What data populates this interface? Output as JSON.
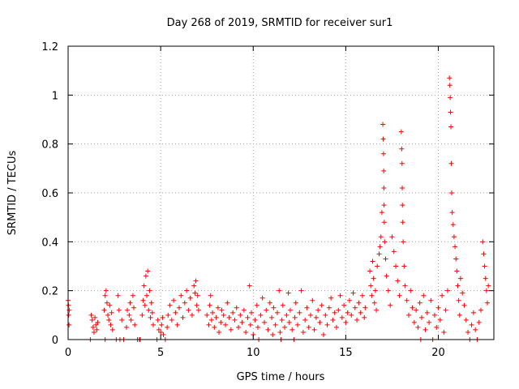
{
  "chart_data": {
    "type": "scatter",
    "title": "Day 268 of 2019, SRMTID for receiver sur1",
    "xlabel": "GPS time / hours",
    "ylabel": "SRMTID / TECUs",
    "xlim": [
      0,
      23
    ],
    "ylim": [
      0,
      1.2
    ],
    "xticks": [
      0,
      5,
      10,
      15,
      20
    ],
    "yticks": [
      0,
      0.2,
      0.4,
      0.6,
      0.8,
      1,
      1.2
    ],
    "xtick_labels": [
      "0",
      "5",
      "10",
      "15",
      "20"
    ],
    "ytick_labels": [
      "0",
      "0.2",
      "0.4",
      "0.6",
      "0.8",
      "1",
      "1.2"
    ],
    "grid": true,
    "marker": "+",
    "color": "#ff0000",
    "series": [
      {
        "name": "SRMTID",
        "points": [
          [
            0.0,
            0.16
          ],
          [
            0.02,
            0.14
          ],
          [
            0.03,
            0.1
          ],
          [
            0.05,
            0.06
          ],
          [
            0.06,
            0.12
          ],
          [
            1.2,
            0.0
          ],
          [
            1.25,
            0.1
          ],
          [
            1.3,
            0.08
          ],
          [
            1.35,
            0.05
          ],
          [
            1.4,
            0.03
          ],
          [
            1.45,
            0.09
          ],
          [
            1.5,
            0.06
          ],
          [
            1.55,
            0.04
          ],
          [
            1.6,
            0.07
          ],
          [
            1.95,
            0.12
          ],
          [
            2.0,
            0.18
          ],
          [
            2.05,
            0.2
          ],
          [
            2.1,
            0.15
          ],
          [
            2.15,
            0.1
          ],
          [
            2.2,
            0.08
          ],
          [
            2.25,
            0.14
          ],
          [
            2.3,
            0.06
          ],
          [
            2.35,
            0.11
          ],
          [
            2.4,
            0.04
          ],
          [
            2.0,
            0.0
          ],
          [
            2.6,
            0.0
          ],
          [
            2.7,
            0.18
          ],
          [
            2.75,
            0.12
          ],
          [
            2.8,
            0.0
          ],
          [
            2.9,
            0.08
          ],
          [
            3.0,
            0.0
          ],
          [
            3.15,
            0.05
          ],
          [
            3.2,
            0.12
          ],
          [
            3.3,
            0.1
          ],
          [
            3.35,
            0.15
          ],
          [
            3.4,
            0.08
          ],
          [
            3.5,
            0.18
          ],
          [
            3.55,
            0.13
          ],
          [
            3.6,
            0.06
          ],
          [
            3.75,
            0.0
          ],
          [
            3.85,
            0.0
          ],
          [
            3.9,
            0.0
          ],
          [
            4.0,
            0.1
          ],
          [
            4.05,
            0.16
          ],
          [
            4.1,
            0.22
          ],
          [
            4.15,
            0.14
          ],
          [
            4.2,
            0.26
          ],
          [
            4.25,
            0.18
          ],
          [
            4.3,
            0.28
          ],
          [
            4.35,
            0.12
          ],
          [
            4.4,
            0.2
          ],
          [
            4.45,
            0.09
          ],
          [
            4.5,
            0.15
          ],
          [
            4.55,
            0.11
          ],
          [
            4.6,
            0.06
          ],
          [
            4.8,
            0.0
          ],
          [
            4.85,
            0.08
          ],
          [
            4.9,
            0.04
          ],
          [
            5.0,
            0.03
          ],
          [
            5.05,
            0.06
          ],
          [
            5.1,
            0.09
          ],
          [
            5.15,
            0.02
          ],
          [
            5.25,
            0.0
          ],
          [
            5.35,
            0.05
          ],
          [
            5.4,
            0.1
          ],
          [
            5.5,
            0.14
          ],
          [
            5.6,
            0.08
          ],
          [
            5.7,
            0.16
          ],
          [
            5.8,
            0.11
          ],
          [
            5.9,
            0.06
          ],
          [
            6.0,
            0.13
          ],
          [
            6.1,
            0.18
          ],
          [
            6.2,
            0.09
          ],
          [
            6.3,
            0.15
          ],
          [
            6.4,
            0.2
          ],
          [
            6.5,
            0.12
          ],
          [
            6.6,
            0.17
          ],
          [
            6.7,
            0.1
          ],
          [
            6.8,
            0.22
          ],
          [
            6.85,
            0.19
          ],
          [
            6.9,
            0.24
          ],
          [
            6.95,
            0.14
          ],
          [
            7.0,
            0.18
          ],
          [
            7.05,
            0.12
          ],
          [
            7.5,
            0.1
          ],
          [
            7.6,
            0.06
          ],
          [
            7.65,
            0.14
          ],
          [
            7.7,
            0.18
          ],
          [
            7.75,
            0.08
          ],
          [
            7.8,
            0.11
          ],
          [
            7.9,
            0.05
          ],
          [
            8.0,
            0.09
          ],
          [
            8.1,
            0.13
          ],
          [
            8.15,
            0.03
          ],
          [
            8.25,
            0.07
          ],
          [
            8.3,
            0.12
          ],
          [
            8.4,
            0.1
          ],
          [
            8.5,
            0.06
          ],
          [
            8.6,
            0.15
          ],
          [
            8.7,
            0.09
          ],
          [
            8.8,
            0.04
          ],
          [
            8.9,
            0.11
          ],
          [
            9.0,
            0.08
          ],
          [
            9.1,
            0.13
          ],
          [
            9.2,
            0.05
          ],
          [
            9.3,
            0.1
          ],
          [
            9.4,
            0.07
          ],
          [
            9.5,
            0.12
          ],
          [
            9.6,
            0.03
          ],
          [
            9.7,
            0.09
          ],
          [
            9.8,
            0.22
          ],
          [
            9.85,
            0.06
          ],
          [
            9.9,
            0.11
          ],
          [
            10.0,
            0.02
          ],
          [
            10.1,
            0.08
          ],
          [
            10.2,
            0.14
          ],
          [
            10.25,
            0.05
          ],
          [
            10.3,
            0.0
          ],
          [
            10.4,
            0.1
          ],
          [
            10.5,
            0.17
          ],
          [
            10.6,
            0.07
          ],
          [
            10.7,
            0.12
          ],
          [
            10.8,
            0.04
          ],
          [
            10.9,
            0.15
          ],
          [
            11.0,
            0.09
          ],
          [
            11.05,
            0.02
          ],
          [
            11.1,
            0.13
          ],
          [
            11.2,
            0.06
          ],
          [
            11.3,
            0.11
          ],
          [
            11.4,
            0.2
          ],
          [
            11.45,
            0.03
          ],
          [
            11.5,
            0.0
          ],
          [
            11.55,
            0.08
          ],
          [
            11.6,
            0.14
          ],
          [
            11.7,
            0.05
          ],
          [
            11.8,
            0.1
          ],
          [
            11.9,
            0.19
          ],
          [
            11.95,
            0.07
          ],
          [
            12.0,
            0.12
          ],
          [
            12.1,
            0.04
          ],
          [
            12.2,
            0.0
          ],
          [
            12.25,
            0.09
          ],
          [
            12.3,
            0.15
          ],
          [
            12.4,
            0.06
          ],
          [
            12.5,
            0.11
          ],
          [
            12.6,
            0.2
          ],
          [
            12.7,
            0.03
          ],
          [
            12.8,
            0.08
          ],
          [
            12.9,
            0.13
          ],
          [
            13.0,
            0.05
          ],
          [
            13.1,
            0.1
          ],
          [
            13.2,
            0.16
          ],
          [
            13.3,
            0.04
          ],
          [
            13.4,
            0.09
          ],
          [
            13.5,
            0.12
          ],
          [
            13.6,
            0.07
          ],
          [
            13.7,
            0.14
          ],
          [
            13.8,
            0.02
          ],
          [
            13.9,
            0.1
          ],
          [
            14.0,
            0.06
          ],
          [
            14.1,
            0.13
          ],
          [
            14.2,
            0.17
          ],
          [
            14.3,
            0.08
          ],
          [
            14.4,
            0.11
          ],
          [
            14.5,
            0.05
          ],
          [
            14.6,
            0.12
          ],
          [
            14.7,
            0.18
          ],
          [
            14.8,
            0.09
          ],
          [
            14.9,
            0.14
          ],
          [
            15.0,
            0.07
          ],
          [
            15.1,
            0.11
          ],
          [
            15.2,
            0.16
          ],
          [
            15.3,
            0.1
          ],
          [
            15.4,
            0.19
          ],
          [
            15.5,
            0.13
          ],
          [
            15.6,
            0.08
          ],
          [
            15.7,
            0.15
          ],
          [
            15.8,
            0.11
          ],
          [
            15.9,
            0.18
          ],
          [
            16.0,
            0.09
          ],
          [
            16.05,
            0.13
          ],
          [
            16.3,
            0.28
          ],
          [
            16.35,
            0.22
          ],
          [
            16.4,
            0.18
          ],
          [
            16.45,
            0.32
          ],
          [
            16.5,
            0.25
          ],
          [
            16.55,
            0.15
          ],
          [
            16.6,
            0.2
          ],
          [
            16.65,
            0.12
          ],
          [
            16.7,
            0.3
          ],
          [
            16.8,
            0.35
          ],
          [
            16.85,
            0.38
          ],
          [
            16.9,
            0.42
          ],
          [
            16.95,
            0.52
          ],
          [
            17.0,
            0.88
          ],
          [
            17.02,
            0.82
          ],
          [
            17.04,
            0.76
          ],
          [
            17.05,
            0.69
          ],
          [
            17.06,
            0.62
          ],
          [
            17.07,
            0.55
          ],
          [
            17.08,
            0.48
          ],
          [
            17.1,
            0.4
          ],
          [
            17.15,
            0.33
          ],
          [
            17.2,
            0.26
          ],
          [
            17.3,
            0.2
          ],
          [
            17.4,
            0.14
          ],
          [
            17.5,
            0.42
          ],
          [
            17.6,
            0.36
          ],
          [
            17.7,
            0.3
          ],
          [
            17.8,
            0.24
          ],
          [
            17.9,
            0.18
          ],
          [
            18.0,
            0.85
          ],
          [
            18.02,
            0.78
          ],
          [
            18.04,
            0.72
          ],
          [
            18.05,
            0.62
          ],
          [
            18.06,
            0.55
          ],
          [
            18.08,
            0.48
          ],
          [
            18.1,
            0.4
          ],
          [
            18.15,
            0.3
          ],
          [
            18.2,
            0.22
          ],
          [
            18.3,
            0.16
          ],
          [
            18.4,
            0.1
          ],
          [
            18.5,
            0.2
          ],
          [
            18.6,
            0.13
          ],
          [
            18.7,
            0.07
          ],
          [
            18.8,
            0.12
          ],
          [
            18.9,
            0.05
          ],
          [
            19.0,
            0.15
          ],
          [
            19.05,
            0.0
          ],
          [
            19.1,
            0.09
          ],
          [
            19.2,
            0.18
          ],
          [
            19.3,
            0.04
          ],
          [
            19.4,
            0.11
          ],
          [
            19.5,
            0.07
          ],
          [
            19.6,
            0.16
          ],
          [
            19.7,
            0.0
          ],
          [
            19.8,
            0.1
          ],
          [
            19.9,
            0.05
          ],
          [
            20.0,
            0.13
          ],
          [
            20.1,
            0.08
          ],
          [
            20.2,
            0.18
          ],
          [
            20.3,
            0.03
          ],
          [
            20.4,
            0.12
          ],
          [
            20.5,
            0.2
          ],
          [
            20.6,
            1.07
          ],
          [
            20.62,
            1.04
          ],
          [
            20.64,
            0.99
          ],
          [
            20.66,
            0.93
          ],
          [
            20.68,
            0.87
          ],
          [
            20.7,
            0.72
          ],
          [
            20.72,
            0.6
          ],
          [
            20.75,
            0.52
          ],
          [
            20.8,
            0.47
          ],
          [
            20.85,
            0.42
          ],
          [
            20.9,
            0.38
          ],
          [
            20.95,
            0.33
          ],
          [
            21.0,
            0.28
          ],
          [
            21.05,
            0.22
          ],
          [
            21.1,
            0.16
          ],
          [
            21.15,
            0.1
          ],
          [
            21.2,
            0.25
          ],
          [
            21.3,
            0.19
          ],
          [
            21.4,
            0.14
          ],
          [
            21.5,
            0.08
          ],
          [
            21.6,
            0.03
          ],
          [
            21.7,
            0.0
          ],
          [
            21.8,
            0.06
          ],
          [
            21.9,
            0.11
          ],
          [
            22.0,
            0.04
          ],
          [
            22.1,
            0.0
          ],
          [
            22.2,
            0.07
          ],
          [
            22.3,
            0.12
          ],
          [
            22.4,
            0.4
          ],
          [
            22.45,
            0.35
          ],
          [
            22.5,
            0.3
          ],
          [
            22.55,
            0.25
          ],
          [
            22.6,
            0.2
          ],
          [
            22.65,
            0.15
          ],
          [
            22.7,
            0.22
          ]
        ]
      }
    ]
  }
}
